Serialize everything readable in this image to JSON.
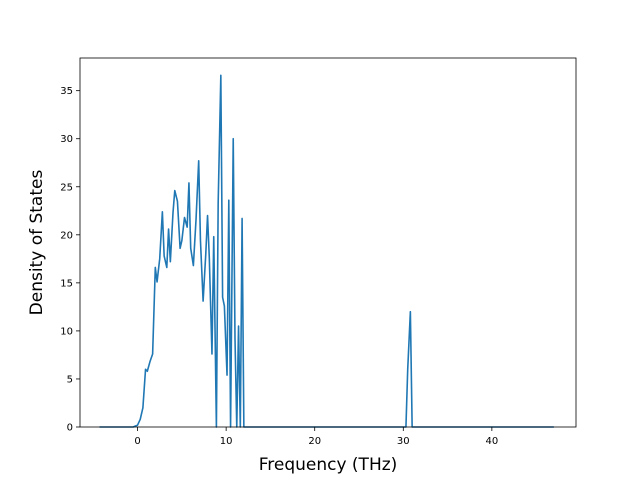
{
  "chart_data": {
    "type": "line",
    "title": "",
    "xlabel": "Frequency (THz)",
    "ylabel": "Density of States",
    "xlim": [
      -6.5,
      49.5
    ],
    "ylim": [
      0,
      38.4
    ],
    "xticks": [
      0,
      10,
      20,
      30,
      40
    ],
    "yticks": [
      0,
      5,
      10,
      15,
      20,
      25,
      30,
      35
    ],
    "grid": false,
    "legend": "none",
    "colors": {
      "line": "#1f77b4",
      "axes": "#000000",
      "background": "#ffffff"
    },
    "series": [
      {
        "x": [
          -4.3,
          -0.5,
          0.0,
          0.3,
          0.6,
          0.9,
          1.1,
          1.4,
          1.7,
          2.0,
          2.2,
          2.5,
          2.8,
          3.0,
          3.3,
          3.5,
          3.7,
          4.0,
          4.2,
          4.5,
          4.8,
          5.0,
          5.3,
          5.6,
          5.8,
          6.0,
          6.3,
          6.6,
          6.9,
          7.1,
          7.4,
          7.7,
          7.9,
          8.1,
          8.4,
          8.6,
          8.9,
          9.1,
          9.4,
          9.6,
          9.8,
          10.1,
          10.3,
          10.5,
          10.8,
          11.0,
          11.2,
          11.4,
          11.6,
          11.8,
          12.0,
          12.2,
          12.4,
          12.7,
          12.9,
          13.2,
          13.5,
          30.3,
          30.5,
          30.8,
          31.0,
          31.3,
          47.0
        ],
        "y": [
          0,
          0,
          0.2,
          0.8,
          2.0,
          6.0,
          5.8,
          6.8,
          7.6,
          16.6,
          15.1,
          17.5,
          22.4,
          17.8,
          16.6,
          20.6,
          17.2,
          22.3,
          24.6,
          23.5,
          18.6,
          19.4,
          21.8,
          20.8,
          25.4,
          18.6,
          16.8,
          21.6,
          27.7,
          19.4,
          13.1,
          18.0,
          22.0,
          17.6,
          7.6,
          19.8,
          0.0,
          23.3,
          36.6,
          13.5,
          12.6,
          5.4,
          23.6,
          0.0,
          30.0,
          9.2,
          0.0,
          10.5,
          0.0,
          21.7,
          0.0,
          0.0,
          0.0,
          0.0,
          0.0,
          0.0,
          0.0,
          0.0,
          6.0,
          12.0,
          0.0,
          0.0,
          0.0
        ]
      }
    ]
  }
}
